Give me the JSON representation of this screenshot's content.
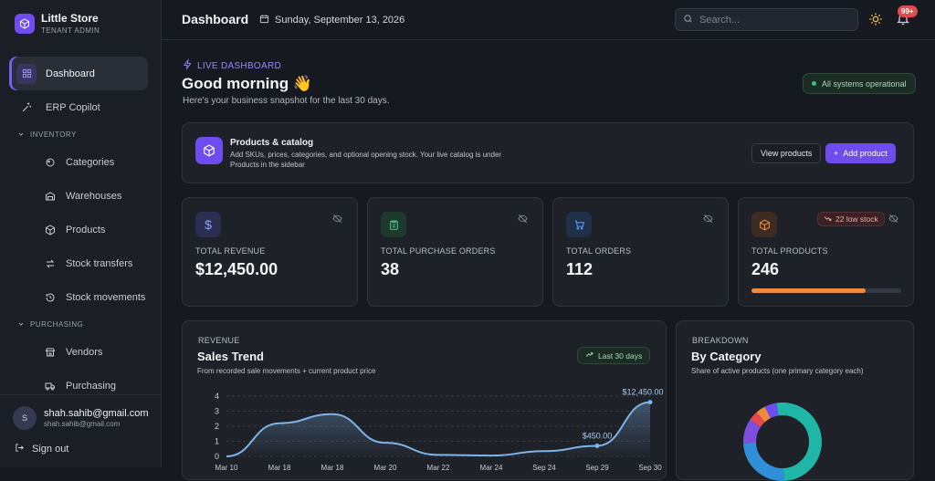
{
  "brand": {
    "name": "Little Store",
    "subtitle": "TENANT ADMIN",
    "color": "#6d4cf0"
  },
  "sidebar": {
    "dashboard": "Dashboard",
    "copilot": "ERP Copilot",
    "inventory_section": "INVENTORY",
    "inventory": [
      "Categories",
      "Warehouses",
      "Products",
      "Stock transfers",
      "Stock movements"
    ],
    "purchasing_section": "PURCHASING",
    "purchasing": [
      "Vendors",
      "Purchasing"
    ]
  },
  "user": {
    "initial": "S",
    "name": "shah.sahib@gmail.com",
    "email": "shah.sahib@gmail.com",
    "signout": "Sign out"
  },
  "header": {
    "title": "Dashboard",
    "date": "Sunday, September 13, 2026",
    "search_placeholder": "Search...",
    "notifications_badge": "99+"
  },
  "hero": {
    "kicker": "LIVE DASHBOARD",
    "greeting": "Good morning 👋",
    "subtitle": "Here's your business snapshot for the last 30 days.",
    "status": "All systems operational"
  },
  "catalog": {
    "title": "Products & catalog",
    "description": "Add SKUs, prices, categories, and optional opening stock. Your live catalog is under Products in the sidebar",
    "view_button": "View products",
    "add_button": "Add product"
  },
  "stats": [
    {
      "label": "TOTAL REVENUE",
      "value": "$12,450.00",
      "icon": "dollar-icon",
      "color": "#7b8cf5"
    },
    {
      "label": "TOTAL PURCHASE ORDERS",
      "value": "38",
      "icon": "clipboard-icon",
      "color": "#4cc38a"
    },
    {
      "label": "TOTAL ORDERS",
      "value": "112",
      "icon": "cart-icon",
      "color": "#5b9cf5"
    },
    {
      "label": "TOTAL PRODUCTS",
      "value": "246",
      "icon": "box-icon",
      "color": "#f08a3c",
      "low_stock": "22 low stock",
      "stock_level_pct": 76
    }
  ],
  "trend": {
    "kicker": "REVENUE",
    "title": "Sales Trend",
    "subtitle": "From recorded sale movements + current product price",
    "range": "Last 30 days"
  },
  "breakdown": {
    "kicker": "BREAKDOWN",
    "title": "By Category",
    "subtitle": "Share of active products (one primary category each)"
  },
  "chart_data": [
    {
      "type": "area",
      "title": "Sales Trend",
      "categories": [
        "Mar 10",
        "Mar 18",
        "Mar 18",
        "Mar 20",
        "Mar 22",
        "Mar 24",
        "Sep 24",
        "Sep 29",
        "Sep 30"
      ],
      "y_ticks": [
        0,
        1,
        2,
        3,
        4
      ],
      "ylim": [
        0,
        4
      ],
      "series": [
        {
          "values": [
            0,
            2.2,
            2.8,
            0.9,
            0.1,
            0.05,
            0.35,
            0.7,
            3.6
          ]
        }
      ],
      "annotations": [
        {
          "text": "$12,450.00",
          "index": 8
        },
        {
          "text": "$450.00",
          "index": 7
        }
      ],
      "grid": true,
      "color": "#7fb4e8"
    },
    {
      "type": "pie",
      "title": "By Category",
      "values": [
        52,
        25,
        10,
        4,
        4,
        5
      ],
      "colors": [
        "#1fb5a7",
        "#2f8fd8",
        "#7b4fe0",
        "#e5484d",
        "#f08a3c",
        "#6d4cf0"
      ]
    }
  ]
}
